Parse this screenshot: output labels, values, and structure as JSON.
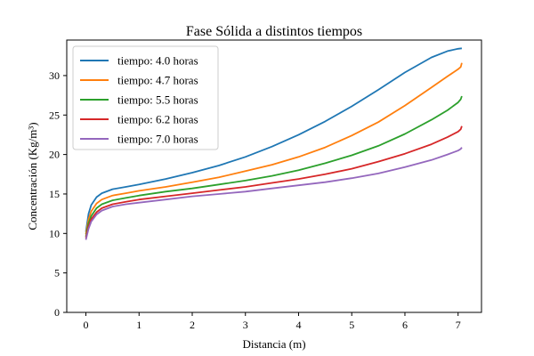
{
  "chart_data": {
    "type": "line",
    "title": "Fase Sólida a distintos tiempos",
    "xlabel": "Distancia (m)",
    "ylabel": "Concentración (Kg/m³)",
    "xlim": [
      -0.36,
      7.44
    ],
    "ylim": [
      0,
      34.5
    ],
    "xticks": [
      0,
      1,
      2,
      3,
      4,
      5,
      6,
      7
    ],
    "yticks": [
      0,
      5,
      10,
      15,
      20,
      25,
      30
    ],
    "legend_position": "top-left",
    "series": [
      {
        "name": "tiempo: 4.0 horas",
        "color": "#1f77b4",
        "x": [
          0,
          0.05,
          0.1,
          0.2,
          0.3,
          0.5,
          0.75,
          1,
          1.5,
          2,
          2.5,
          3,
          3.5,
          4,
          4.5,
          5,
          5.5,
          6,
          6.5,
          6.8,
          7,
          7.07
        ],
        "y": [
          10.2,
          12.5,
          13.6,
          14.6,
          15.1,
          15.6,
          15.9,
          16.2,
          16.9,
          17.7,
          18.6,
          19.7,
          21.0,
          22.5,
          24.2,
          26.1,
          28.2,
          30.4,
          32.3,
          33.1,
          33.4,
          33.45
        ]
      },
      {
        "name": "tiempo: 4.7 horas",
        "color": "#ff7f0e",
        "x": [
          0,
          0.05,
          0.1,
          0.2,
          0.3,
          0.5,
          0.75,
          1,
          1.5,
          2,
          2.5,
          3,
          3.5,
          4,
          4.5,
          5,
          5.5,
          6,
          6.5,
          6.8,
          7,
          7.05,
          7.07
        ],
        "y": [
          9.9,
          11.8,
          12.8,
          13.8,
          14.3,
          14.8,
          15.1,
          15.4,
          15.9,
          16.5,
          17.1,
          17.9,
          18.7,
          19.7,
          20.9,
          22.4,
          24.1,
          26.2,
          28.5,
          29.9,
          30.8,
          31.1,
          31.6
        ]
      },
      {
        "name": "tiempo: 5.5 horas",
        "color": "#2ca02c",
        "x": [
          0,
          0.05,
          0.1,
          0.2,
          0.3,
          0.5,
          0.75,
          1,
          1.5,
          2,
          2.5,
          3,
          3.5,
          4,
          4.5,
          5,
          5.5,
          6,
          6.5,
          6.8,
          7,
          7.05,
          7.07
        ],
        "y": [
          9.6,
          11.3,
          12.2,
          13.2,
          13.7,
          14.2,
          14.5,
          14.8,
          15.3,
          15.7,
          16.2,
          16.7,
          17.3,
          18.0,
          18.9,
          19.9,
          21.1,
          22.6,
          24.4,
          25.6,
          26.6,
          27.0,
          27.4
        ]
      },
      {
        "name": "tiempo: 6.2 horas",
        "color": "#d62728",
        "x": [
          0,
          0.05,
          0.1,
          0.2,
          0.3,
          0.5,
          0.75,
          1,
          1.5,
          2,
          2.5,
          3,
          3.5,
          4,
          4.5,
          5,
          5.5,
          6,
          6.5,
          6.8,
          7,
          7.05,
          7.07
        ],
        "y": [
          9.4,
          10.9,
          11.8,
          12.7,
          13.2,
          13.7,
          14.0,
          14.3,
          14.7,
          15.1,
          15.5,
          15.9,
          16.4,
          16.9,
          17.5,
          18.2,
          19.1,
          20.1,
          21.3,
          22.2,
          22.9,
          23.2,
          23.6
        ]
      },
      {
        "name": "tiempo: 7.0 horas",
        "color": "#9467bd",
        "x": [
          0,
          0.05,
          0.1,
          0.2,
          0.3,
          0.5,
          0.75,
          1,
          1.5,
          2,
          2.5,
          3,
          3.5,
          4,
          4.5,
          5,
          5.5,
          6,
          6.5,
          6.8,
          7,
          7.05,
          7.07
        ],
        "y": [
          9.2,
          10.6,
          11.5,
          12.4,
          12.9,
          13.4,
          13.7,
          13.9,
          14.3,
          14.7,
          15.0,
          15.3,
          15.7,
          16.1,
          16.5,
          17.0,
          17.6,
          18.4,
          19.3,
          20.0,
          20.5,
          20.7,
          20.9
        ]
      }
    ]
  }
}
